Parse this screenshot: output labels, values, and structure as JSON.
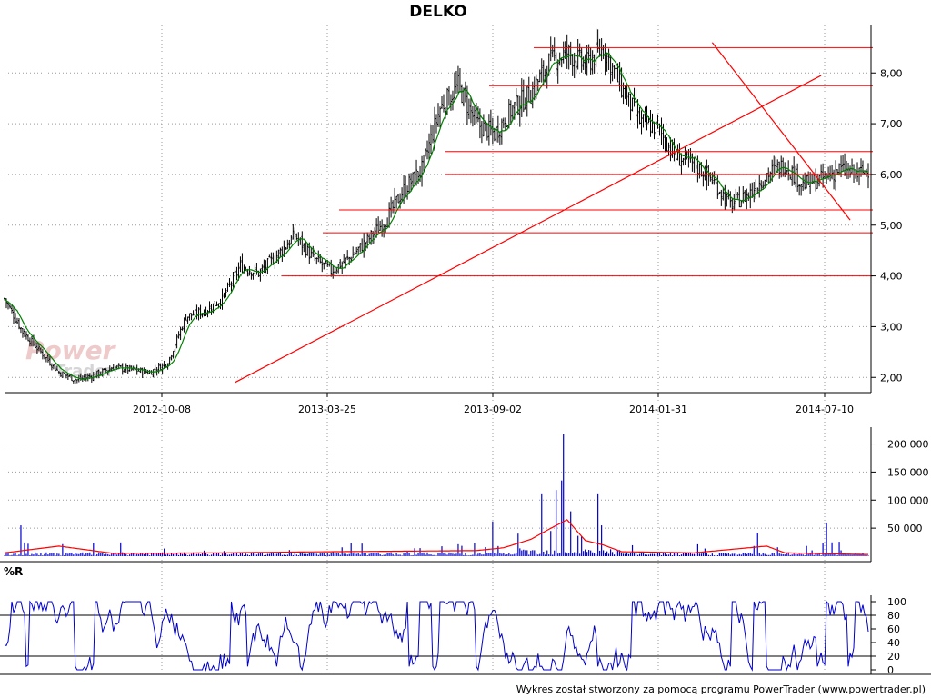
{
  "chart_data": [
    {
      "type": "candlestick",
      "panel": "price",
      "title": "DELKO",
      "xlabels": [
        "2012-10-08",
        "2013-03-25",
        "2013-09-02",
        "2014-01-31",
        "2014-07-10"
      ],
      "ylabels": [
        "2,00",
        "3,00",
        "4,00",
        "5,00",
        "6,00",
        "7,00",
        "8,00"
      ],
      "ylim": [
        1.7,
        8.9
      ],
      "series_anchor_points": {
        "x_index": [
          0,
          10,
          20,
          30,
          40,
          50,
          60,
          70,
          80,
          90,
          100,
          110,
          120,
          130,
          140,
          150,
          160,
          170,
          180,
          190,
          200,
          210,
          220,
          230,
          240,
          250,
          260,
          270,
          280,
          290,
          300,
          310,
          320,
          330,
          340,
          350,
          360,
          370,
          380,
          390,
          400,
          410,
          420,
          430,
          440,
          450,
          460,
          470,
          476
        ],
        "close": [
          3.55,
          2.9,
          2.5,
          2.1,
          1.95,
          2.05,
          2.2,
          2.15,
          2.1,
          2.3,
          3.2,
          3.3,
          3.55,
          4.2,
          4.05,
          4.4,
          4.8,
          4.35,
          4.1,
          4.35,
          4.7,
          5.1,
          5.7,
          6.1,
          7.3,
          7.75,
          7.0,
          6.8,
          7.3,
          7.6,
          8.2,
          8.4,
          8.15,
          8.5,
          7.7,
          7.05,
          6.9,
          6.35,
          6.2,
          5.9,
          5.4,
          5.6,
          6.0,
          6.2,
          5.8,
          5.9,
          6.1,
          6.0,
          6.1
        ]
      },
      "moving_average_color": "#008000",
      "candle_color": "#000000",
      "horizontal_lines": [
        8.5,
        7.75,
        6.45,
        6.0,
        5.3,
        4.85,
        4.0
      ],
      "trendlines": [
        {
          "from": [
            127,
            1.9
          ],
          "to": [
            450,
            7.95
          ]
        },
        {
          "from": [
            390,
            8.6
          ],
          "to": [
            466,
            5.1
          ]
        }
      ],
      "annotation_color": "#ff0000",
      "watermark": {
        "line1": "Power",
        "line2": "Trader"
      }
    },
    {
      "type": "bar",
      "panel": "volume",
      "ylabels": [
        "50 000",
        "100 000",
        "150 000",
        "200 000"
      ],
      "ylim": [
        0,
        230000
      ],
      "bar_color": "#0000cc",
      "average_color": "#ff0000",
      "spikes": [
        {
          "x_index": 9,
          "value": 55000
        },
        {
          "x_index": 269,
          "value": 62000
        },
        {
          "x_index": 296,
          "value": 112000
        },
        {
          "x_index": 301,
          "value": 45000
        },
        {
          "x_index": 304,
          "value": 118000
        },
        {
          "x_index": 307,
          "value": 135000
        },
        {
          "x_index": 308,
          "value": 217000
        },
        {
          "x_index": 312,
          "value": 80000
        },
        {
          "x_index": 327,
          "value": 112000
        },
        {
          "x_index": 329,
          "value": 55000
        },
        {
          "x_index": 453,
          "value": 60000
        },
        {
          "x_index": 415,
          "value": 42000
        }
      ],
      "avg_anchor_points": {
        "x_index": [
          0,
          30,
          60,
          120,
          180,
          260,
          275,
          290,
          300,
          310,
          320,
          330,
          340,
          380,
          420,
          430,
          476
        ],
        "value": [
          6000,
          18000,
          5000,
          6000,
          8000,
          10000,
          15000,
          30000,
          48000,
          65000,
          28000,
          20000,
          8000,
          6000,
          18000,
          6000,
          3000
        ]
      }
    },
    {
      "type": "line",
      "panel": "oscillator",
      "label": "%R",
      "ylabels": [
        "0",
        "20",
        "40",
        "60",
        "80",
        "100"
      ],
      "ylim": [
        0,
        100
      ],
      "reference_lines": [
        20,
        80
      ],
      "line_color": "#0000cc"
    }
  ],
  "footer": "Wykres został stworzony za pomocą programu PowerTrader (www.powertrader.pl)"
}
